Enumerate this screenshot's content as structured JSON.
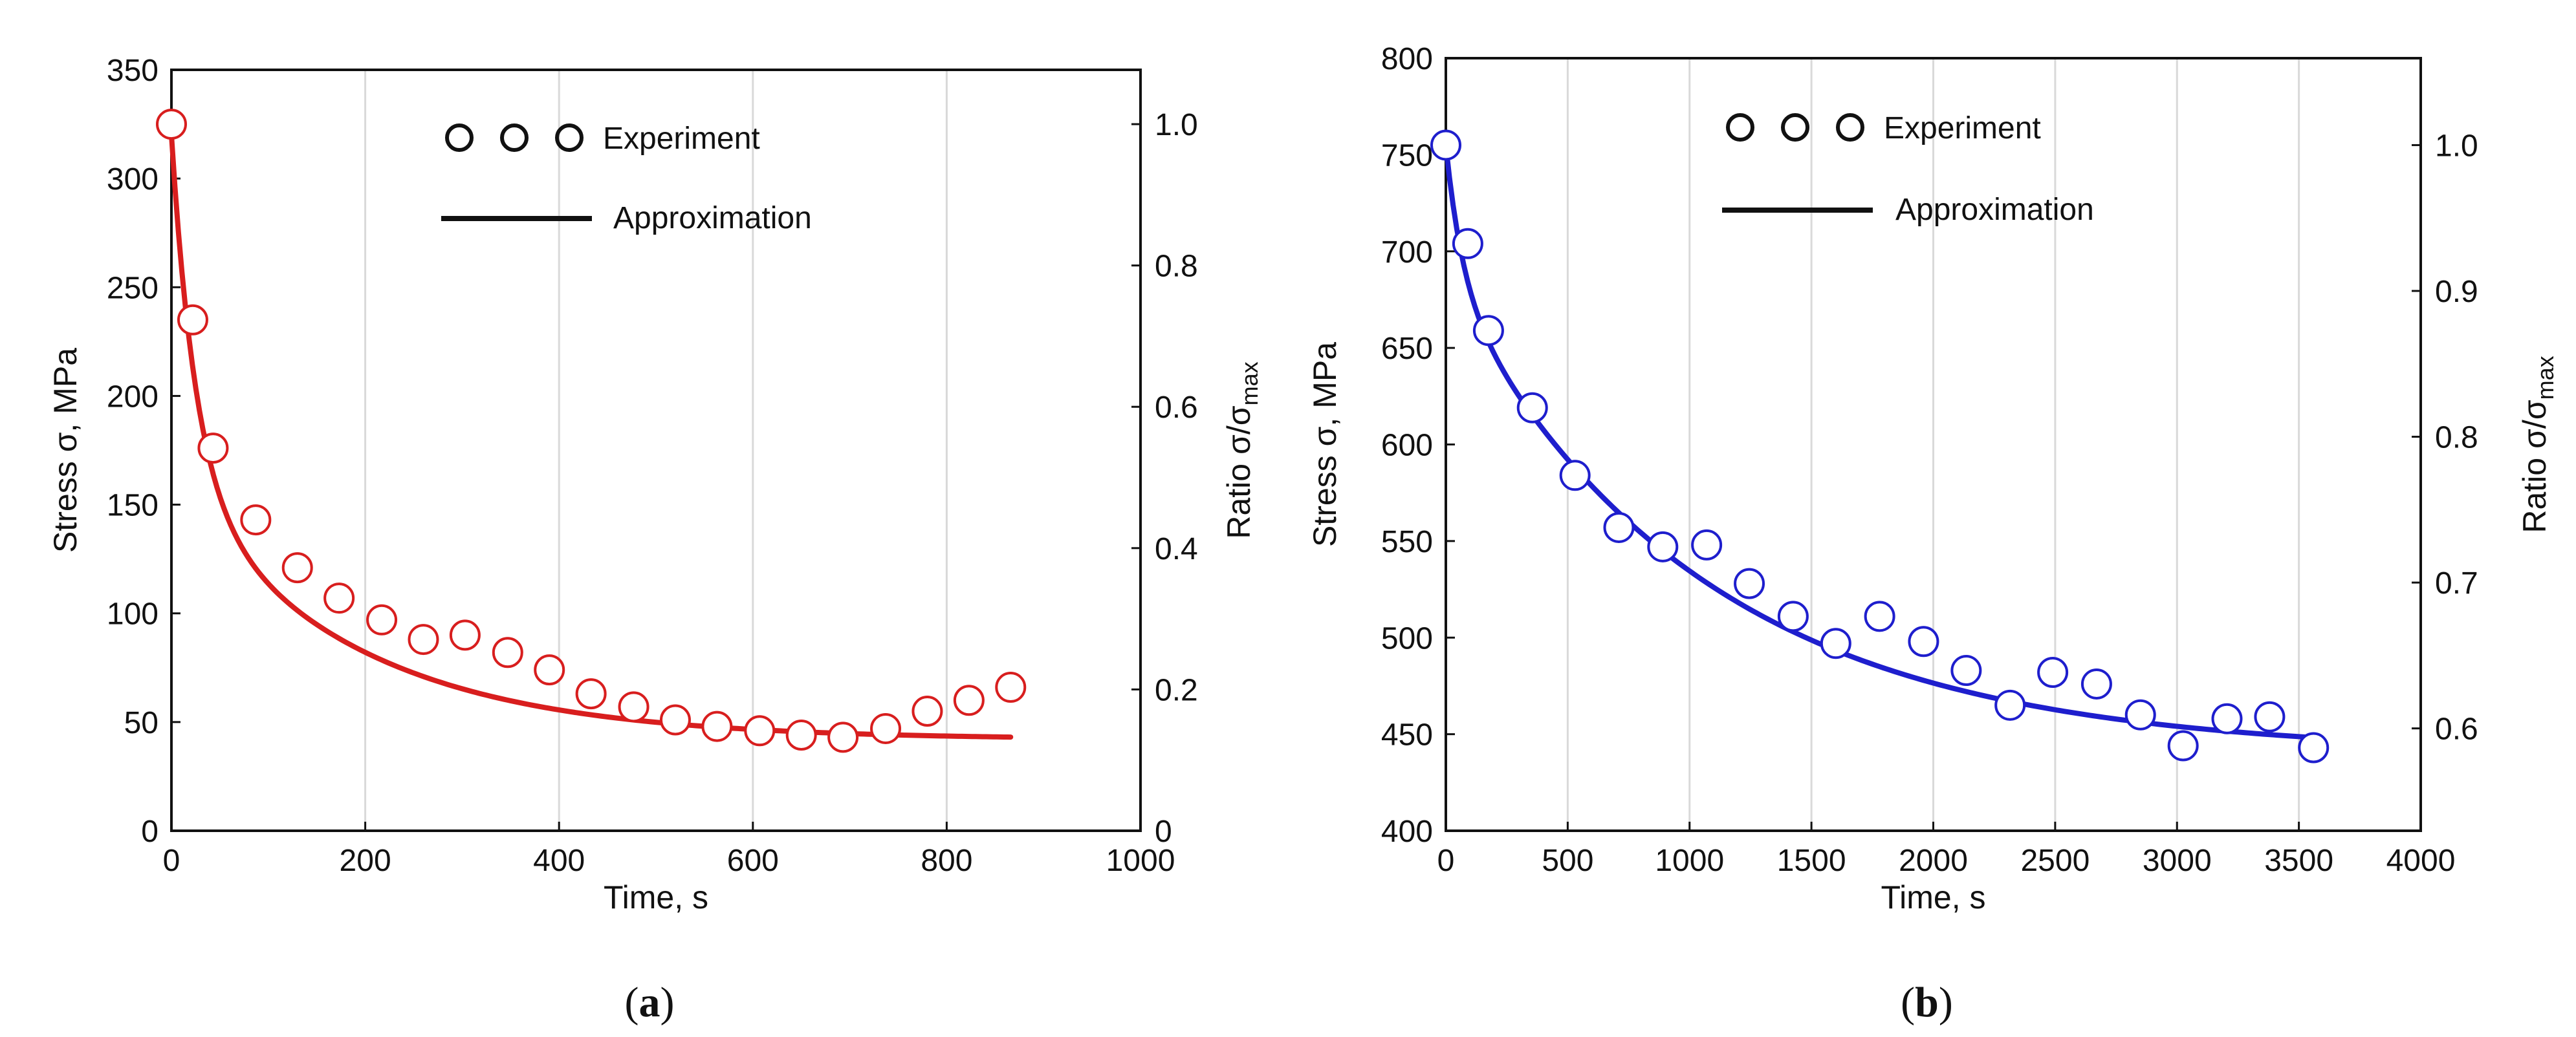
{
  "chart_data": [
    {
      "type": "scatter",
      "panel_label": "a",
      "color": "#d81e1e",
      "xlabel": "Time, s",
      "ylabel": "Stress σ, MPa",
      "y2label_prefix": "Ratio σ/σ",
      "y2label_sub": "max",
      "xlim": [
        0,
        1000
      ],
      "ylim": [
        0,
        350
      ],
      "y2lim": [
        0,
        1.0769
      ],
      "xticks": [
        0,
        200,
        400,
        600,
        800,
        1000
      ],
      "xtick_labels": [
        "0",
        "200",
        "400",
        "600",
        "800",
        "1000"
      ],
      "yticks": [
        0,
        50,
        100,
        150,
        200,
        250,
        300,
        350
      ],
      "ytick_labels": [
        "0",
        "50",
        "100",
        "150",
        "200",
        "250",
        "300",
        "350"
      ],
      "y2ticks": [
        0,
        0.2,
        0.4,
        0.6,
        0.8,
        1.0
      ],
      "y2tick_labels": [
        "0",
        "0.2",
        "0.4",
        "0.6",
        "0.8",
        "1.0"
      ],
      "grid": "vertical",
      "legend": {
        "position": "top-center",
        "experiment": "Experiment",
        "approximation": "Approximation"
      },
      "series": [
        {
          "name": "Experiment",
          "x": [
            0,
            22,
            43,
            87,
            130,
            173,
            217,
            260,
            303,
            347,
            390,
            433,
            477,
            520,
            563,
            607,
            650,
            693,
            737,
            780,
            823,
            866
          ],
          "y": [
            325,
            235,
            176,
            143,
            121,
            107,
            97,
            88,
            90,
            82,
            74,
            63,
            57,
            51,
            48,
            46,
            44,
            43,
            47,
            55,
            60,
            66
          ]
        },
        {
          "name": "Approximation",
          "model": {
            "y_inf": 42,
            "a1": 160,
            "tau1": 25,
            "a2": 118,
            "tau2": 185
          },
          "x_range": [
            0,
            866
          ]
        }
      ]
    },
    {
      "type": "scatter",
      "panel_label": "b",
      "color": "#1e1ecd",
      "xlabel": "Time, s",
      "ylabel": "Stress σ, MPa",
      "y2label_prefix": "Ratio σ/σ",
      "y2label_sub": "max",
      "xlim": [
        0,
        4000
      ],
      "ylim": [
        400,
        800
      ],
      "y2lim": [
        0.5298,
        1.0596
      ],
      "xticks": [
        0,
        500,
        1000,
        1500,
        2000,
        2500,
        3000,
        3500,
        4000
      ],
      "xtick_labels": [
        "0",
        "500",
        "1000",
        "1500",
        "2000",
        "2500",
        "3000",
        "3500",
        "4000"
      ],
      "yticks": [
        400,
        450,
        500,
        550,
        600,
        650,
        700,
        750,
        800
      ],
      "ytick_labels": [
        "400",
        "450",
        "500",
        "550",
        "600",
        "650",
        "700",
        "750",
        "800"
      ],
      "y2ticks": [
        0.6,
        0.7,
        0.8,
        0.9,
        1.0
      ],
      "y2tick_labels": [
        "0.6",
        "0.7",
        "0.8",
        "0.9",
        "1.0"
      ],
      "grid": "vertical",
      "legend": {
        "position": "top-center",
        "experiment": "Experiment",
        "approximation": "Approximation"
      },
      "series": [
        {
          "name": "Experiment",
          "x": [
            0,
            90,
            175,
            355,
            530,
            710,
            890,
            1070,
            1245,
            1425,
            1600,
            1780,
            1960,
            2135,
            2315,
            2490,
            2670,
            2850,
            3025,
            3205,
            3380,
            3560
          ],
          "y": [
            755,
            704,
            659,
            619,
            584,
            557,
            547,
            548,
            528,
            511,
            497,
            511,
            498,
            483,
            465,
            482,
            476,
            460,
            444,
            458,
            459,
            443
          ]
        },
        {
          "name": "Approximation",
          "model": {
            "y_inf": 440,
            "a1": 70,
            "tau1": 70,
            "a2": 245,
            "tau2": 1050
          },
          "x_range": [
            0,
            3560
          ]
        }
      ]
    }
  ]
}
